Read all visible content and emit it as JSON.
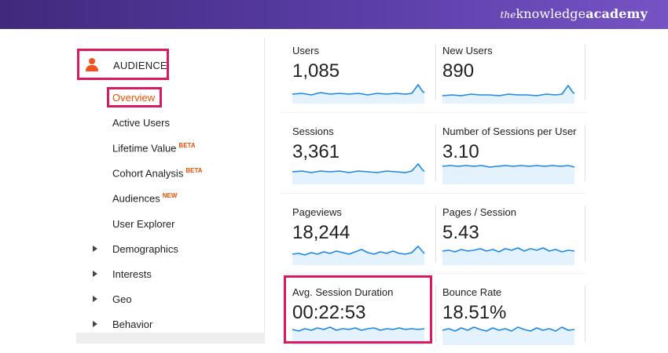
{
  "brand": {
    "prefix": "the",
    "main": "knowledge",
    "suffix": "academy"
  },
  "sidebar": {
    "section_label": "AUDIENCE",
    "selected_label": "Overview",
    "items": [
      {
        "label": "Active Users",
        "badge": ""
      },
      {
        "label": "Lifetime Value",
        "badge": "BETA"
      },
      {
        "label": "Cohort Analysis",
        "badge": "BETA"
      },
      {
        "label": "Audiences",
        "badge": "NEW"
      },
      {
        "label": "User Explorer",
        "badge": ""
      }
    ],
    "expandable": [
      {
        "label": "Demographics"
      },
      {
        "label": "Interests"
      },
      {
        "label": "Geo"
      },
      {
        "label": "Behavior"
      }
    ]
  },
  "metrics": [
    {
      "label": "Users",
      "value": "1,085"
    },
    {
      "label": "New Users",
      "value": "890"
    },
    {
      "label": "Sessions",
      "value": "3,361"
    },
    {
      "label": "Number of Sessions per User",
      "value": "3.10"
    },
    {
      "label": "Pageviews",
      "value": "18,244"
    },
    {
      "label": "Pages / Session",
      "value": "5.43"
    },
    {
      "label": "Avg. Session Duration",
      "value": "00:22:53"
    },
    {
      "label": "Bounce Rate",
      "value": "18.51%"
    }
  ],
  "colors": {
    "accent": "#d81b60",
    "selected_text": "#e65100",
    "sparkline": "#1e88e5",
    "sparkline_fill": "#e3f2fd"
  }
}
